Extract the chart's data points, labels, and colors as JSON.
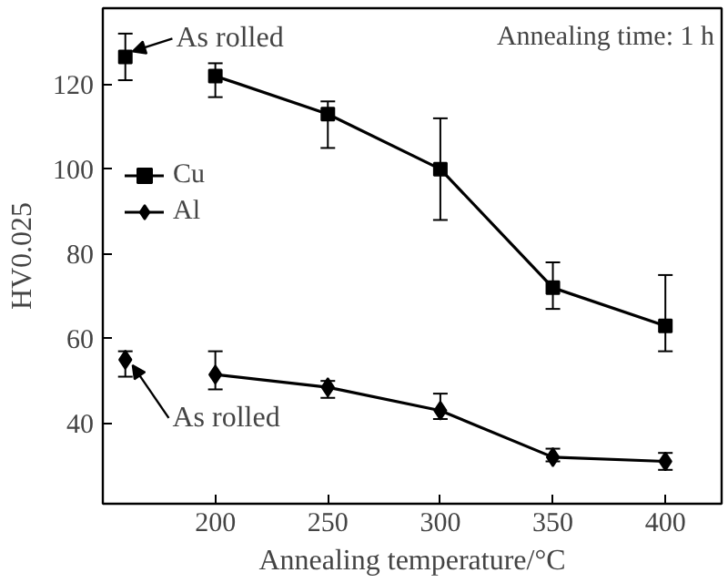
{
  "chart_data": {
    "type": "line",
    "xlabel": "Annealing temperature/°C",
    "ylabel": "HV0.025",
    "xlim": [
      150,
      425
    ],
    "xticks": [
      200,
      250,
      300,
      350,
      400
    ],
    "ylim": [
      21,
      138
    ],
    "yticks": [
      40,
      60,
      80,
      100,
      120
    ],
    "grid": false,
    "legend": "left",
    "line_style": "solid",
    "series": [
      {
        "name": "Cu",
        "color": "#000000",
        "marker": "square",
        "x": [
          200,
          250,
          300,
          350,
          400
        ],
        "values": [
          122,
          113,
          100,
          72,
          63
        ],
        "errors": [
          [
            117,
            125
          ],
          [
            105,
            116
          ],
          [
            88,
            112
          ],
          [
            67,
            78
          ],
          [
            57,
            75
          ]
        ]
      },
      {
        "name": "Al",
        "color": "#000000",
        "marker": "diamond",
        "x": [
          200,
          250,
          300,
          350,
          400
        ],
        "values": [
          51.5,
          48.5,
          43,
          32,
          31
        ],
        "errors": [
          [
            48,
            57
          ],
          [
            46,
            50
          ],
          [
            41,
            47
          ],
          [
            31,
            34
          ],
          [
            29,
            33
          ]
        ]
      },
      {
        "type": "scatter",
        "color": "#000000",
        "marker": "square",
        "x": [
          160
        ],
        "values": [
          126.5
        ],
        "errors": [
          [
            121,
            132
          ]
        ]
      },
      {
        "type": "scatter",
        "color": "#000000",
        "marker": "diamond",
        "x": [
          160
        ],
        "values": [
          55
        ],
        "errors": [
          [
            51,
            57
          ]
        ]
      }
    ],
    "annotations": [
      {
        "text": "As rolled",
        "x": 160,
        "y": 126.5
      },
      {
        "text": "As rolled",
        "x": 160,
        "y": 55
      },
      "Annealing time: 1 h"
    ]
  }
}
